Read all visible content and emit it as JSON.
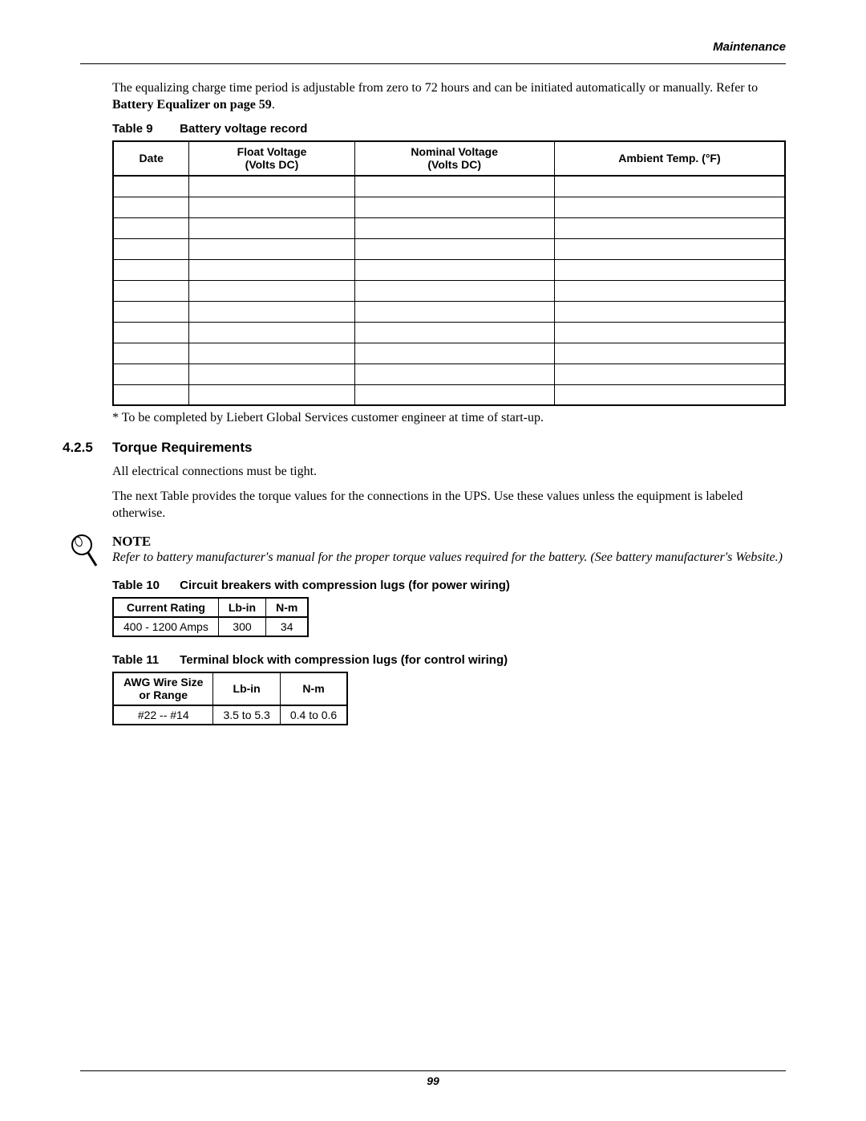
{
  "header": {
    "section_label": "Maintenance"
  },
  "intro": {
    "p1_a": "The equalizing charge time period is adjustable from zero to 72 hours and can be initiated automatically or manually. Refer to ",
    "p1_b": "Battery Equalizer on page 59",
    "p1_c": "."
  },
  "table9": {
    "caption_num": "Table 9",
    "caption_title": "Battery voltage record",
    "columns": [
      {
        "label": "Date"
      },
      {
        "line1": "Float Voltage",
        "line2": "(Volts DC)"
      },
      {
        "line1": "Nominal Voltage",
        "line2": "(Volts DC)"
      },
      {
        "label": "Ambient Temp. (°F)"
      }
    ],
    "empty_rows": 11,
    "col_widths": [
      "25%",
      "25%",
      "25%",
      "25%"
    ],
    "border_color": "#000000",
    "font_family": "Arial",
    "header_fontsize": 14
  },
  "footnote_t9": "* To be completed by Liebert Global Services customer engineer at time of start-up.",
  "section": {
    "num": "4.2.5",
    "title": "Torque Requirements",
    "p1": "All electrical connections must be tight.",
    "p2": "The next Table provides the torque values for the connections in the UPS. Use these values unless the equipment is labeled otherwise."
  },
  "note": {
    "label": "NOTE",
    "body": "Refer to battery manufacturer's manual for the proper torque values required for the battery. (See battery manufacturer's Website.)"
  },
  "table10": {
    "caption_num": "Table 10",
    "caption_title": "Circuit breakers with compression lugs (for power wiring)",
    "columns": [
      "Current Rating",
      "Lb-in",
      "N-m"
    ],
    "rows": [
      [
        "400 - 1200 Amps",
        "300",
        "34"
      ]
    ]
  },
  "table11": {
    "caption_num": "Table 11",
    "caption_title": "Terminal block with compression lugs (for control wiring)",
    "columns": [
      {
        "line1": "AWG Wire Size",
        "line2": "or Range"
      },
      {
        "label": "Lb-in"
      },
      {
        "label": "N-m"
      }
    ],
    "rows": [
      [
        "#22 -- #14",
        "3.5 to 5.3",
        "0.4 to 0.6"
      ]
    ]
  },
  "footer": {
    "page_number": "99"
  },
  "style": {
    "page_bg": "#ffffff",
    "text_color": "#000000",
    "body_font": "Century Schoolbook / Times",
    "sans_font": "Arial",
    "body_fontsize": 16,
    "caption_fontsize": 15,
    "section_fontsize": 17
  }
}
